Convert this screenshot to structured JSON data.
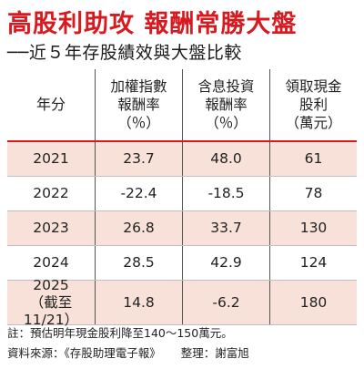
{
  "title": "高股利助攻  報酬常勝大盤",
  "subtitle": "──近５年存股績效與大盤比較",
  "table": {
    "headers": [
      {
        "line1": "年分",
        "line2": ""
      },
      {
        "line1": "加權指數",
        "line2": "報酬率",
        "line3": "（％）"
      },
      {
        "line1": "含息投資",
        "line2": "報酬率",
        "line3": "（％）"
      },
      {
        "line1": "領取現金",
        "line2": "股利",
        "line3": "（萬元）"
      }
    ],
    "rows": [
      {
        "year": "2021",
        "year_note": "",
        "index_return": "23.7",
        "invest_return": "48.0",
        "dividend": "61"
      },
      {
        "year": "2022",
        "year_note": "",
        "index_return": "-22.4",
        "invest_return": "-18.5",
        "dividend": "78"
      },
      {
        "year": "2023",
        "year_note": "",
        "index_return": "26.8",
        "invest_return": "33.7",
        "dividend": "130"
      },
      {
        "year": "2024",
        "year_note": "",
        "index_return": "28.5",
        "invest_return": "42.9",
        "dividend": "124"
      },
      {
        "year": "2025",
        "year_note": "（截至11/21）",
        "index_return": "14.8",
        "invest_return": "-6.2",
        "dividend": "180"
      }
    ]
  },
  "notes": {
    "note": "註：預估明年現金股利降至140～150萬元。",
    "source": "資料來源：《存股助理電子報》",
    "editor": "整理：謝富旭"
  },
  "colors": {
    "title": "#d71920",
    "row_shade": "#f7e1d8",
    "header_rule": "#d71920"
  }
}
